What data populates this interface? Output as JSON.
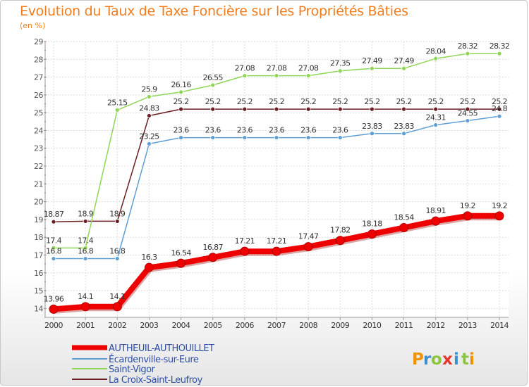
{
  "chart_data": {
    "type": "line",
    "title": "Evolution du Taux de Taxe Foncière sur les Propriétés Bâties",
    "ylabel": "(en %)",
    "xlabel": "",
    "ylim": [
      13.5,
      29
    ],
    "yticks": [
      14,
      15,
      16,
      17,
      18,
      19,
      20,
      21,
      22,
      23,
      24,
      25,
      26,
      27,
      28,
      29
    ],
    "categories": [
      "2000",
      "2001",
      "2002",
      "2003",
      "2004",
      "2005",
      "2006",
      "2007",
      "2008",
      "2009",
      "2010",
      "2011",
      "2012",
      "2013",
      "2014"
    ],
    "series": [
      {
        "name": "AUTHEUIL-AUTHOUILLET",
        "color": "#ee0000",
        "values": [
          13.96,
          14.1,
          14.1,
          16.3,
          16.54,
          16.87,
          17.21,
          17.21,
          17.47,
          17.82,
          18.18,
          18.54,
          18.91,
          19.2,
          19.2
        ],
        "labels": [
          "13.96",
          "14.1",
          "14.1",
          "16.3",
          "16.54",
          "16.87",
          "17.21",
          "17.21",
          "17.47",
          "17.82",
          "18.18",
          "18.54",
          "18.91",
          "19.2",
          "19.2"
        ]
      },
      {
        "name": "Écardenville-sur-Eure",
        "color": "#5f9ed3",
        "values": [
          16.8,
          16.8,
          16.8,
          23.25,
          23.6,
          23.6,
          23.6,
          23.6,
          23.6,
          23.6,
          23.83,
          23.83,
          24.31,
          24.55,
          24.8
        ],
        "labels": [
          "16.8",
          "16.8",
          "16.8",
          "23.25",
          "23.6",
          "23.6",
          "23.6",
          "23.6",
          "23.6",
          "23.6",
          "23.83",
          "23.83",
          "24.31",
          "24.55",
          "24.8"
        ]
      },
      {
        "name": "Saint-Vigor",
        "color": "#8fd656",
        "values": [
          17.4,
          17.4,
          25.15,
          25.9,
          26.16,
          26.55,
          27.08,
          27.08,
          27.08,
          27.35,
          27.49,
          27.49,
          28.04,
          28.32,
          28.32
        ],
        "labels": [
          "17.4",
          "17.4",
          "25.15",
          "25.9",
          "26.16",
          "26.55",
          "27.08",
          "27.08",
          "27.08",
          "27.35",
          "27.49",
          "27.49",
          "28.04",
          "28.32",
          "28.32"
        ]
      },
      {
        "name": "La Croix-Saint-Leufroy",
        "color": "#6b1f24",
        "values": [
          18.87,
          18.9,
          18.9,
          24.83,
          25.2,
          25.2,
          25.2,
          25.2,
          25.2,
          25.2,
          25.2,
          25.2,
          25.2,
          25.2,
          25.2
        ],
        "labels": [
          "18.87",
          "18.9",
          "18.9",
          "24.83",
          "25.2",
          "25.2",
          "25.2",
          "25.2",
          "25.2",
          "25.2",
          "25.2",
          "25.2",
          "25.2",
          "25.2",
          "25.2"
        ]
      }
    ],
    "legend_position": "bottom-left"
  },
  "brand": {
    "letters": [
      "P",
      "r",
      "o",
      "x",
      "i",
      "t",
      "i"
    ],
    "colors": [
      "#f39200",
      "#3a8fd0",
      "#8cc63f",
      "#e5352d",
      "#3a8fd0",
      "#8cc63f",
      "#f39200"
    ]
  }
}
